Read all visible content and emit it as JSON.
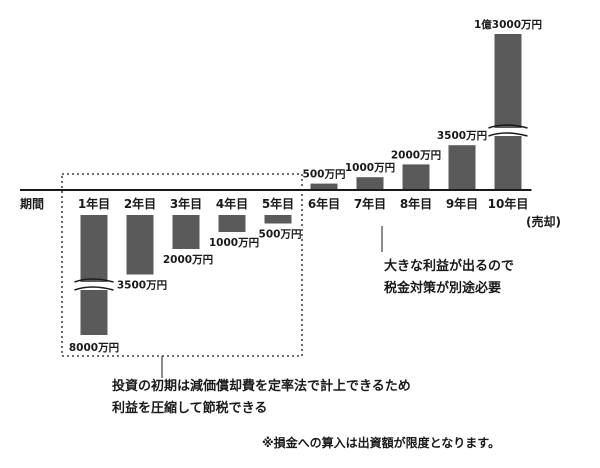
{
  "chart_data": {
    "type": "bar",
    "axis_label": "期間",
    "categories": [
      "1年目",
      "2年目",
      "3年目",
      "4年目",
      "5年目",
      "6年目",
      "7年目",
      "8年目",
      "9年目",
      "10年目"
    ],
    "category_note": "(売却)",
    "values": [
      -8000,
      -3500,
      -2000,
      -1000,
      -500,
      500,
      1000,
      2000,
      3500,
      13000
    ],
    "value_labels": [
      "8000万円",
      "3500万円",
      "2000万円",
      "1000万円",
      "500万円",
      "500万円",
      "1000万円",
      "2000万円",
      "3500万円",
      "1億3000万円"
    ],
    "unit": "万円",
    "axis_breaks": [
      0,
      9
    ],
    "bar_color": "#5a5a5a"
  },
  "notes": {
    "loss_line1": "投資の初期は減価償却費を定率法で計上できるため",
    "loss_line2": "利益を圧縮して節税できる",
    "profit_line1": "大きな利益が出るので",
    "profit_line2": "税金対策が別途必要",
    "footnote": "※損金への算入は出資額が限度となります。"
  }
}
